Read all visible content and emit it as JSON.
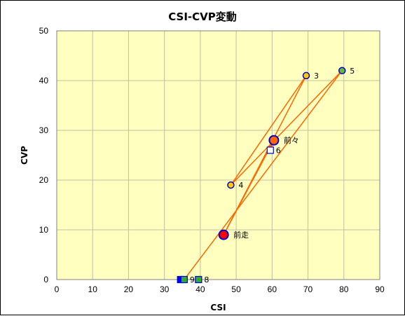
{
  "chart_data": {
    "type": "scatter",
    "title": "CSI-CVP変動",
    "xlabel": "CSI",
    "ylabel": "CVP",
    "xlim": [
      0,
      90
    ],
    "ylim": [
      0,
      50
    ],
    "xticks": [
      0,
      10,
      20,
      30,
      40,
      50,
      60,
      70,
      80,
      90
    ],
    "yticks": [
      0,
      10,
      20,
      30,
      40,
      50
    ],
    "grid": true,
    "plot_background": "#ffffc0",
    "grid_color": "#c0c0a0",
    "line_color": "#ff6600",
    "points": [
      {
        "label": "",
        "x": 34.5,
        "y": 0,
        "marker": "square",
        "fill": "#0000ff",
        "size": "small"
      },
      {
        "label": "9",
        "x": 35.5,
        "y": 0,
        "marker": "square",
        "fill": "#33aa33",
        "size": "small"
      },
      {
        "label": "8",
        "x": 39.5,
        "y": 0,
        "marker": "square",
        "fill": "#33aa33",
        "size": "small"
      },
      {
        "label": "前走",
        "x": 46.5,
        "y": 9,
        "marker": "circle",
        "fill": "#ff0000",
        "size": "large"
      },
      {
        "label": "4",
        "x": 48.5,
        "y": 19,
        "marker": "circle",
        "fill": "#ffcc00",
        "size": "small"
      },
      {
        "label": "6",
        "x": 59.5,
        "y": 26,
        "marker": "square",
        "fill": "#ffffff",
        "size": "small"
      },
      {
        "label": "前々",
        "x": 60.5,
        "y": 28,
        "marker": "circle",
        "fill": "#ff6600",
        "size": "large"
      },
      {
        "label": "3",
        "x": 69.5,
        "y": 41,
        "marker": "circle",
        "fill": "#ffcc00",
        "size": "small"
      },
      {
        "label": "5",
        "x": 79.5,
        "y": 42,
        "marker": "circle",
        "fill": "#66bb33",
        "size": "small"
      }
    ],
    "path": [
      [
        35.5,
        0
      ],
      [
        79.5,
        42
      ],
      [
        48.5,
        19
      ],
      [
        69.5,
        41
      ],
      [
        46.5,
        9
      ],
      [
        60.5,
        28
      ],
      [
        59.5,
        26
      ]
    ]
  }
}
